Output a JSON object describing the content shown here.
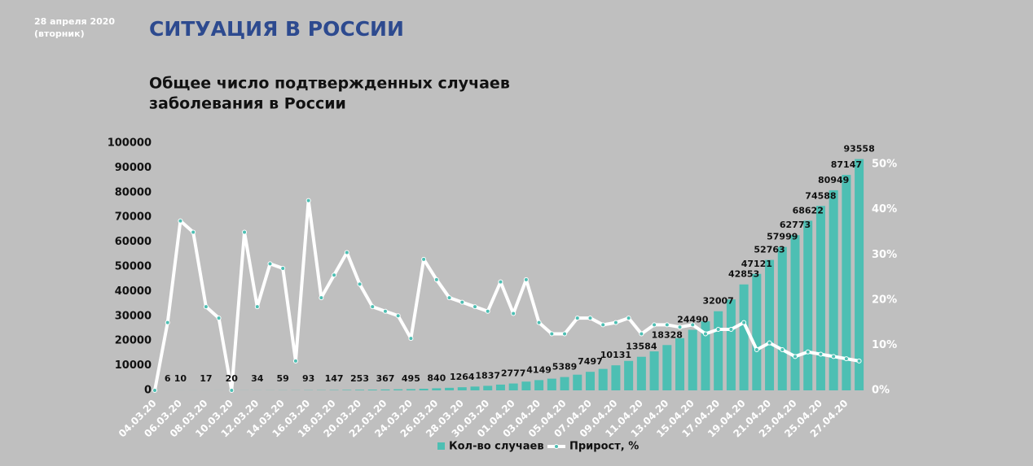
{
  "chart_data": {
    "type": "bar_line",
    "date": "28 апреля 2020",
    "weekday": "(вторник)",
    "header": "СИТУАЦИЯ В РОССИИ",
    "title": [
      "Общее число подтвержденных случаев",
      "заболевания в России"
    ],
    "categories": [
      "04.03.20",
      null,
      "06.03.20",
      null,
      "08.03.20",
      null,
      "10.03.20",
      null,
      "12.03.20",
      null,
      "14.03.20",
      null,
      "16.03.20",
      null,
      "18.03.20",
      null,
      "20.03.20",
      null,
      "22.03.20",
      null,
      "24.03.20",
      null,
      "26.03.20",
      null,
      "28.03.20",
      null,
      "30.03.20",
      null,
      "01.04.20",
      null,
      "03.04.20",
      null,
      "05.04.20",
      null,
      "07.04.20",
      null,
      "09.04.20",
      null,
      "11.04.20",
      null,
      "13.04.20",
      null,
      "15.04.20",
      null,
      "17.04.20",
      null,
      "19.04.20",
      null,
      "21.04.20",
      null,
      "23.04.20",
      null,
      "25.04.20",
      null,
      "27.04.20",
      null
    ],
    "series": [
      {
        "name": "Кол-во случаев",
        "color": "#4dbfb3",
        "values": [
          3,
          6,
          10,
          14,
          17,
          17,
          20,
          28,
          34,
          45,
          59,
          63,
          93,
          114,
          147,
          199,
          253,
          306,
          367,
          438,
          495,
          658,
          840,
          1036,
          1264,
          1534,
          1837,
          2337,
          2777,
          3548,
          4149,
          4731,
          5389,
          6343,
          7497,
          8672,
          10131,
          11917,
          13584,
          15770,
          18328,
          21102,
          24490,
          27938,
          32007,
          36793,
          42853,
          47121,
          52763,
          57999,
          62773,
          68622,
          74588,
          80949,
          87147,
          93558
        ],
        "value_labels": [
          null,
          "6",
          "10",
          null,
          "17",
          null,
          "20",
          null,
          "34",
          null,
          "59",
          null,
          "93",
          null,
          "147",
          null,
          "253",
          null,
          "367",
          null,
          "495",
          null,
          "840",
          null,
          "1264",
          null,
          "1837",
          null,
          "2777",
          null,
          "4149",
          null,
          "5389",
          null,
          "7497",
          null,
          "10131",
          null,
          "13584",
          null,
          "18328",
          null,
          "24490",
          null,
          "32007",
          null,
          "42853",
          "47121",
          "52763",
          "57999",
          "62773",
          "68622",
          "74588",
          "80949",
          "87147",
          "93558"
        ]
      },
      {
        "name": "Прирост, %",
        "color": "#ffffff",
        "marker_color": "#4dbfb3",
        "axis": "y2",
        "values": [
          0,
          15,
          37.5,
          35,
          18.5,
          16,
          0,
          35,
          18.5,
          28,
          27,
          6.5,
          42,
          20.5,
          25.5,
          30.5,
          23.5,
          18.5,
          17.5,
          16.5,
          11.5,
          29,
          24.5,
          20.5,
          19.5,
          18.5,
          17.5,
          24,
          17,
          24.5,
          15,
          12.5,
          12.5,
          16,
          16,
          14.5,
          15,
          16,
          12.5,
          14.5,
          14.5,
          14,
          14.5,
          12.5,
          13.5,
          13.5,
          15,
          9,
          10.5,
          9,
          7.5,
          8.5,
          8,
          7.5,
          7,
          6.5
        ]
      }
    ],
    "ylim": [
      0,
      100000
    ],
    "yticks": [
      0,
      10000,
      20000,
      30000,
      40000,
      50000,
      60000,
      70000,
      80000,
      90000,
      100000
    ],
    "y2lim": [
      0,
      54.7
    ],
    "y2ticks": [
      {
        "value": 0,
        "label": "0%"
      },
      {
        "value": 10,
        "label": "10%"
      },
      {
        "value": 20,
        "label": "20%"
      },
      {
        "value": 30,
        "label": "30%"
      },
      {
        "value": 40,
        "label": "40%"
      },
      {
        "value": 50,
        "label": "50%"
      }
    ]
  }
}
